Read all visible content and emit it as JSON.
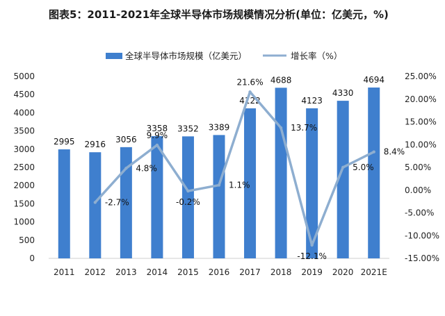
{
  "chart_data": {
    "type": "bar",
    "title": "图表5：2011-2021年全球半导体市场规模情况分析(单位：亿美元，%)",
    "categories": [
      "2011",
      "2012",
      "2013",
      "2014",
      "2015",
      "2016",
      "2017",
      "2018",
      "2019",
      "2020",
      "2021E"
    ],
    "series": [
      {
        "name": "全球半导体市场规模（亿美元）",
        "kind": "bar",
        "axis": "left",
        "color": "#3f7fce",
        "values": [
          2995,
          2916,
          3056,
          3358,
          3352,
          3389,
          4122,
          4688,
          4123,
          4330,
          4694
        ],
        "labels": [
          "2995",
          "2916",
          "3056",
          "3358",
          "3352",
          "3389",
          "4122",
          "4688",
          "4123",
          "4330",
          "4694"
        ]
      },
      {
        "name": "增长率（%）",
        "kind": "line",
        "axis": "right",
        "color": "#8eaed0",
        "values": [
          null,
          -2.7,
          4.8,
          9.9,
          -0.2,
          1.1,
          21.6,
          13.7,
          -12.1,
          5.0,
          8.4
        ],
        "labels": [
          "",
          "-2.7%",
          "4.8%",
          "9.9%",
          "-0.2%",
          "1.1%",
          "21.6%",
          "13.7%",
          "-12.1%",
          "5.0%",
          "8.4%"
        ]
      }
    ],
    "y_left": {
      "range": [
        0,
        5000
      ],
      "ticks": [
        "0",
        "500",
        "1000",
        "1500",
        "2000",
        "2500",
        "3000",
        "3500",
        "4000",
        "4500",
        "5000"
      ]
    },
    "y_right": {
      "range": [
        -15,
        25
      ],
      "ticks": [
        "-15.00%",
        "-10.00%",
        "-5.00%",
        "0.00%",
        "5.00%",
        "10.00%",
        "15.00%",
        "20.00%",
        "25.00%"
      ]
    },
    "legend_position": "top",
    "grid": false
  }
}
